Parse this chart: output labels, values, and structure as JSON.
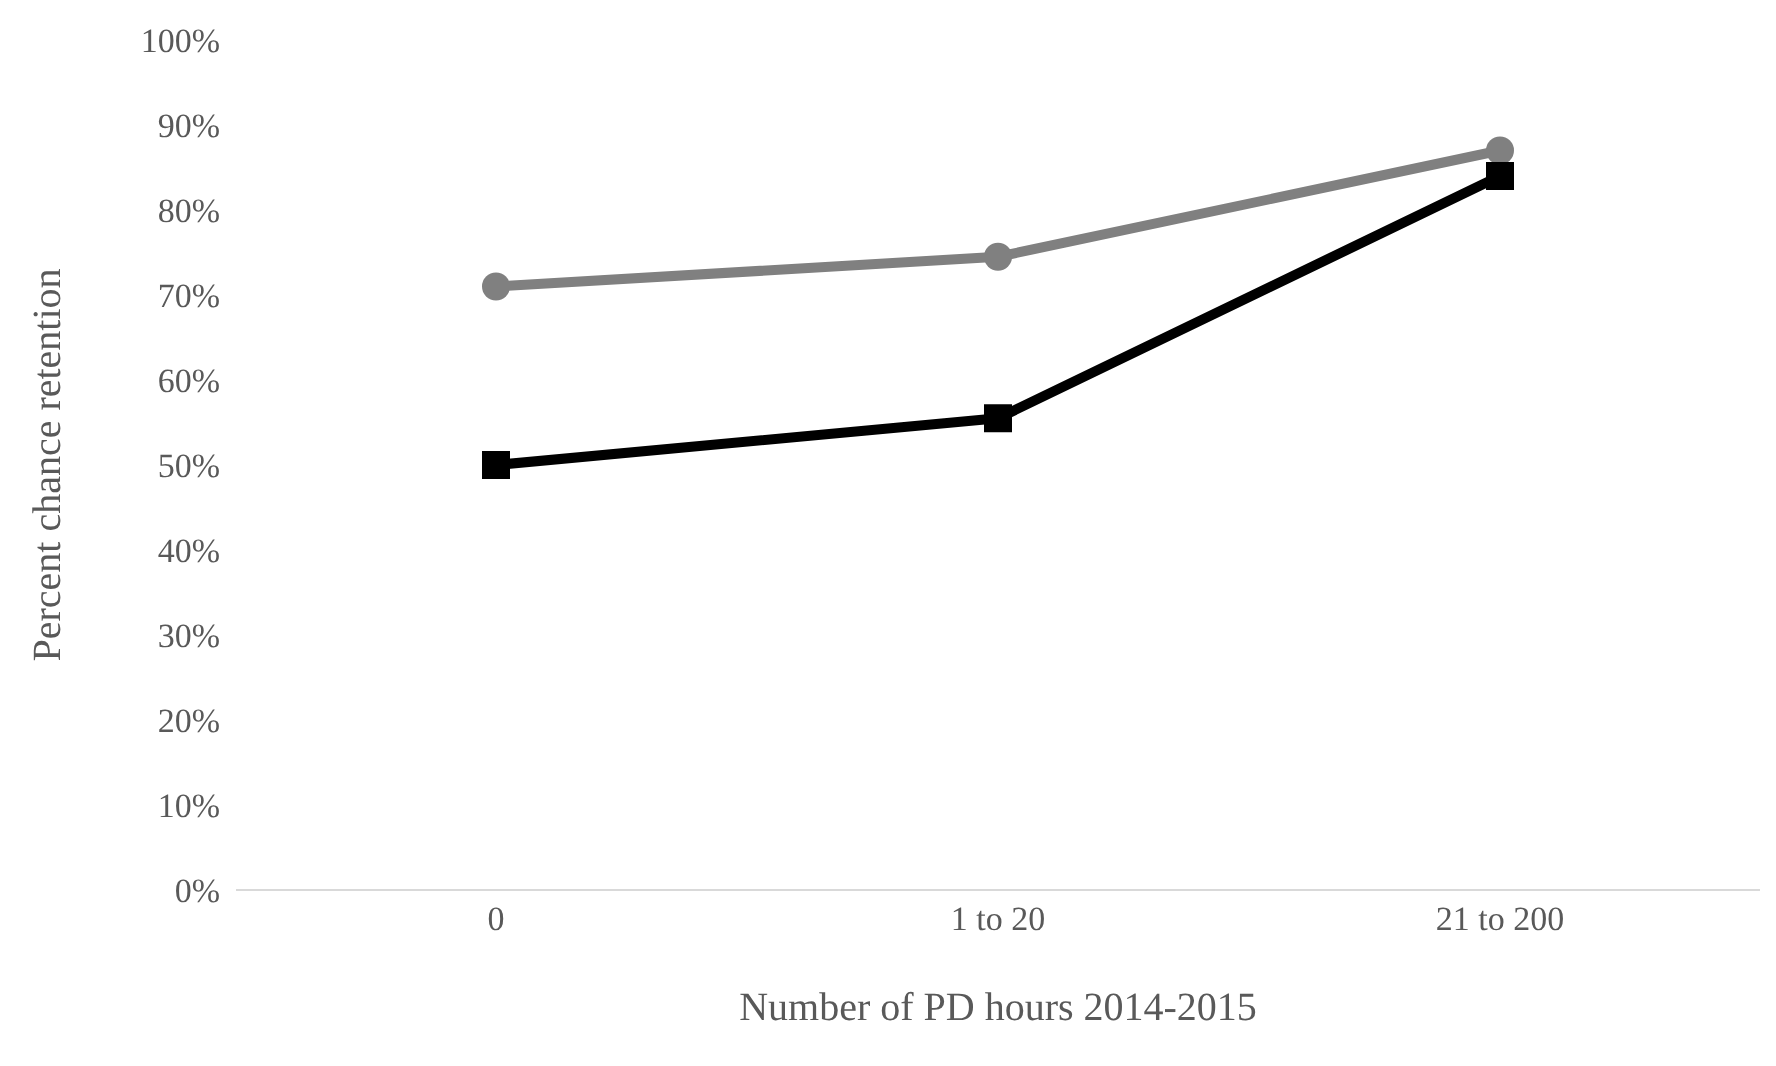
{
  "chart_data": {
    "type": "line",
    "xlabel": "Number of PD hours 2014-2015",
    "ylabel": "Percent chance retention",
    "categories": [
      "0",
      "1 to 20",
      "21 to 200"
    ],
    "series": [
      {
        "color": "#808080",
        "marker": "circle",
        "values": [
          71,
          74.5,
          87
        ]
      },
      {
        "color": "#000000",
        "marker": "square",
        "values": [
          50,
          55.5,
          84
        ]
      }
    ],
    "ylim": [
      0,
      100
    ],
    "yticks": [
      {
        "value": 0,
        "label": "0%"
      },
      {
        "value": 10,
        "label": "10%"
      },
      {
        "value": 20,
        "label": "20%"
      },
      {
        "value": 30,
        "label": "30%"
      },
      {
        "value": 40,
        "label": "40%"
      },
      {
        "value": 50,
        "label": "50%"
      },
      {
        "value": 60,
        "label": "60%"
      },
      {
        "value": 70,
        "label": "70%"
      },
      {
        "value": 80,
        "label": "80%"
      },
      {
        "value": 90,
        "label": "90%"
      },
      {
        "value": 100,
        "label": "100%"
      }
    ],
    "grid": false,
    "legend": false,
    "line_style": "solid"
  }
}
